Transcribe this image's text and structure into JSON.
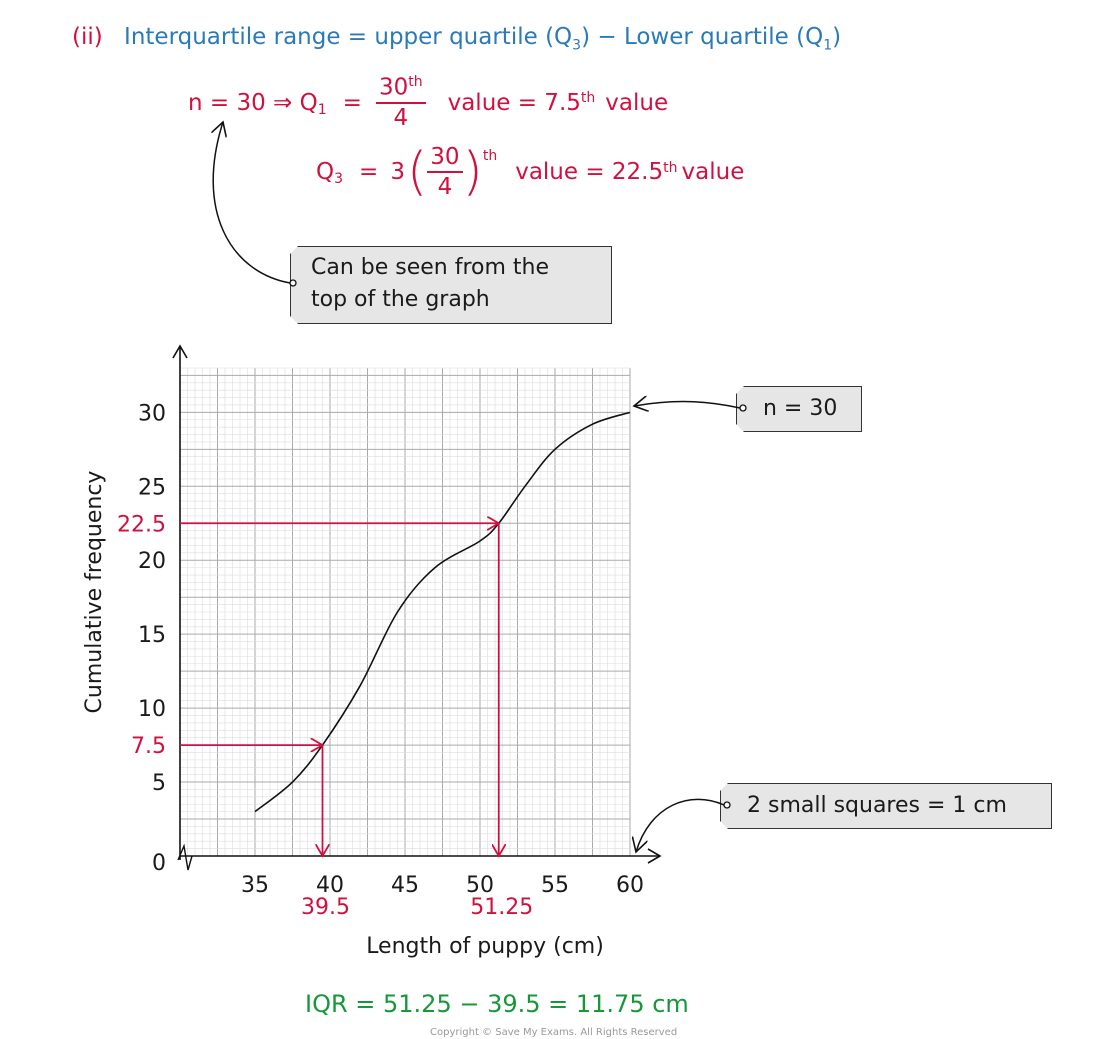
{
  "heading": {
    "part": "(ii)",
    "text_pre": "Interquartile range = upper quartile (Q",
    "sub3": "3",
    "text_mid": ") − Lower quartile (Q",
    "sub1": "1",
    "text_end": ")"
  },
  "q1_line": {
    "prefix": "n = 30 ⇒ Q",
    "sub": "1",
    "equals": "=",
    "num": "30",
    "num_sup": "th",
    "den": "4",
    "value_text": "value = 7.5",
    "value_sup": "th",
    "value_word": "value"
  },
  "q3_line": {
    "prefix": "Q",
    "sub": "3",
    "equals": "=",
    "coef": "3",
    "num": "30",
    "den": "4",
    "sup": "th",
    "value_text": "value = 22.5",
    "value_sup": "th",
    "value_word": "value"
  },
  "notes": {
    "top_line1": "Can be seen from the",
    "top_line2": "top of the graph",
    "n_label": "n = 30",
    "squares": "2 small squares = 1 cm"
  },
  "result": "IQR = 51.25 − 39.5 = 11.75 cm",
  "copyright": "Copyright © Save My Exams. All Rights Reserved",
  "chart_data": {
    "type": "line",
    "xlabel": "Length of puppy (cm)",
    "ylabel": "Cumulative frequency",
    "x_ticks": [
      "35",
      "40",
      "45",
      "50",
      "55",
      "60"
    ],
    "y_ticks": [
      "5",
      "10",
      "15",
      "20",
      "25",
      "30"
    ],
    "origin_label": "0",
    "xlim": [
      30,
      60
    ],
    "ylim": [
      0,
      33
    ],
    "grid": true,
    "series": [
      {
        "x": [
          35,
          37.5,
          39.5,
          42,
          44.5,
          47,
          50,
          51.25,
          53,
          55,
          57.5,
          60
        ],
        "y": [
          3,
          5,
          7.5,
          11.5,
          16.5,
          19.5,
          21.3,
          22.5,
          25,
          27.5,
          29.2,
          30
        ]
      }
    ],
    "annotations": {
      "q1": {
        "y": 7.5,
        "x": 39.5,
        "y_label": "7.5",
        "x_label": "39.5"
      },
      "q3": {
        "y": 22.5,
        "x": 51.25,
        "y_label": "22.5",
        "x_label": "51.25"
      }
    },
    "colors": {
      "curve": "#111111",
      "arrows": "#d0113f",
      "grid": "#c8c8c8"
    }
  }
}
